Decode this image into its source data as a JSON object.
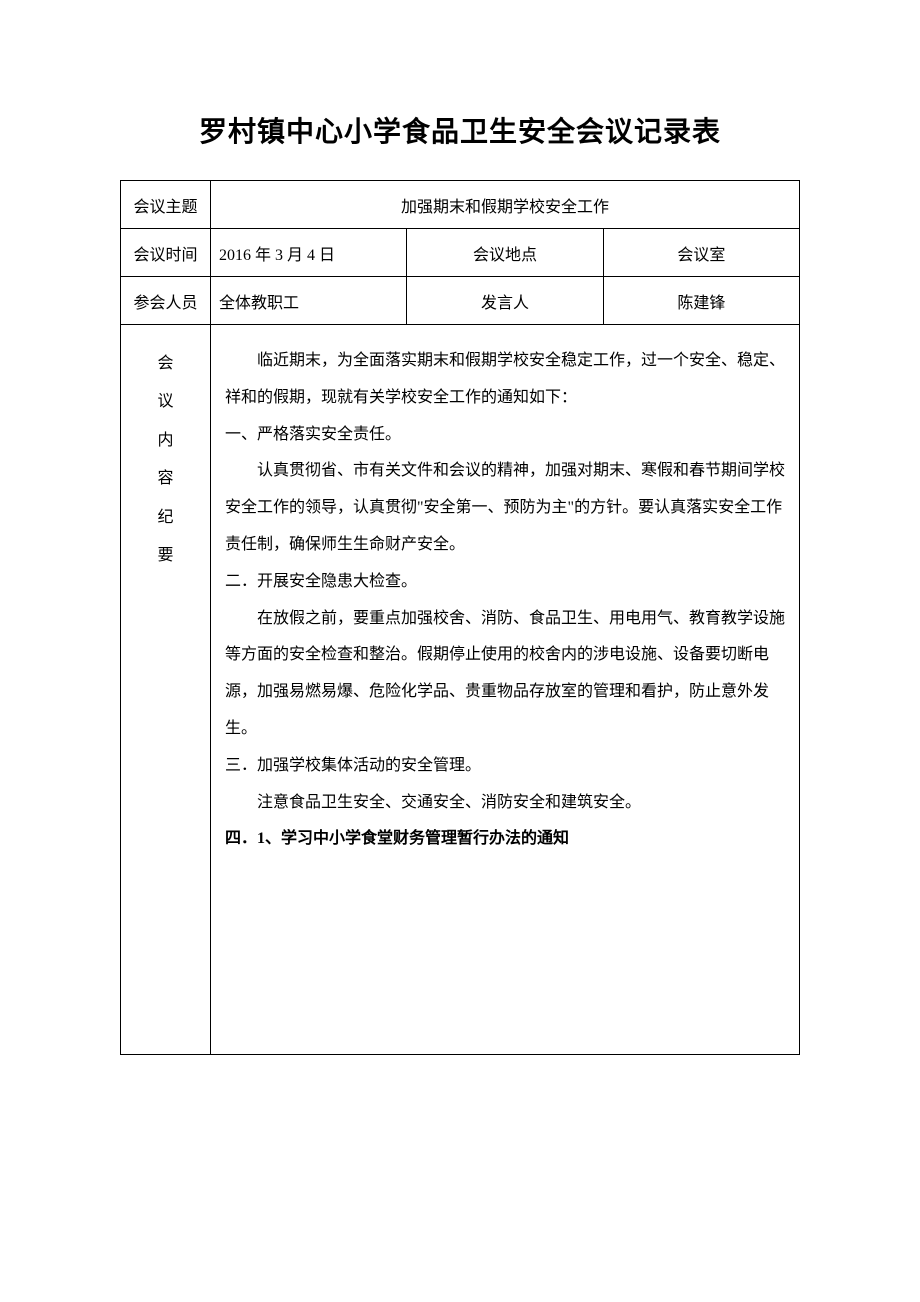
{
  "title": "罗村镇中心小学食品卫生安全会议记录表",
  "labels": {
    "theme": "会议主题",
    "time": "会议时间",
    "location": "会议地点",
    "attendees": "参会人员",
    "speaker": "发言人",
    "summary": "会\n议\n内\n容\n纪\n要"
  },
  "values": {
    "theme": "加强期末和假期学校安全工作",
    "time": "2016 年 3 月 4 日",
    "location": "会议室",
    "attendees": "全体教职工",
    "speaker": "陈建锋"
  },
  "content": {
    "intro": "临近期末，为全面落实期末和假期学校安全稳定工作，过一个安全、稳定、祥和的假期，现就有关学校安全工作的通知如下：",
    "s1_title": "一、严格落实安全责任。",
    "s1_body": "认真贯彻省、市有关文件和会议的精神，加强对期末、寒假和春节期间学校安全工作的领导，认真贯彻\"安全第一、预防为主\"的方针。要认真落实安全工作责任制，确保师生生命财产安全。",
    "s2_title": "二．开展安全隐患大检查。",
    "s2_body": "在放假之前，要重点加强校舍、消防、食品卫生、用电用气、教育教学设施等方面的安全检查和整治。假期停止使用的校舍内的涉电设施、设备要切断电源，加强易燃易爆、危险化学品、贵重物品存放室的管理和看护，防止意外发生。",
    "s3_title": "三．加强学校集体活动的安全管理。",
    "s3_body": "注意食品卫生安全、交通安全、消防安全和建筑安全。",
    "s4_title": "四．1、学习中小学食堂财务管理暂行办法的通知"
  },
  "styles": {
    "text_color": "#000000",
    "background_color": "#ffffff",
    "border_color": "#000000",
    "title_fontsize": 28,
    "body_fontsize": 16,
    "line_height": 2.3
  }
}
